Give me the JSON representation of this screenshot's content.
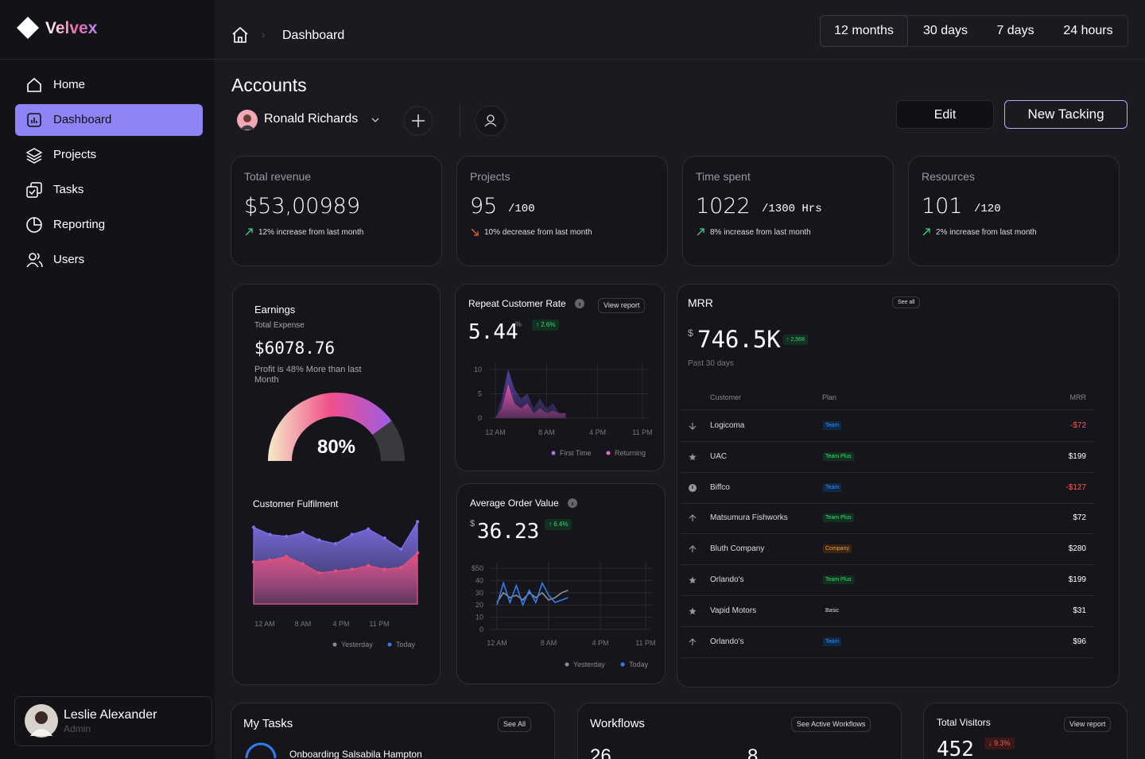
{
  "sidebar": {
    "brand": "Velvex",
    "nav": [
      "Home",
      "Dashboard",
      "Projects",
      "Tasks",
      "Reporting",
      "Users"
    ],
    "active_nav": 1,
    "user": {
      "name": "Leslie Alexander",
      "role": "Admin"
    }
  },
  "header": {
    "breadcrumb": "Dashboard",
    "ranges": [
      "12 months",
      "30 days",
      "7 days",
      "24 hours"
    ],
    "active_range": 0
  },
  "accounts": {
    "title": "Accounts",
    "account": "Ronald Richards",
    "edit": "Edit",
    "new": "New Tacking"
  },
  "stats": [
    {
      "label": "Total revenue",
      "value": "$53,00989",
      "change": "12% increase from last month",
      "trend": "up"
    },
    {
      "label": "Projects",
      "value": "95",
      "suffix": "/100",
      "change": "10% decrease from last month",
      "trend": "down"
    },
    {
      "label": "Time spent",
      "value": "1022",
      "suffix": "/1300 Hrs",
      "change": "8% increase from last month",
      "trend": "up"
    },
    {
      "label": "Resources",
      "value": "101",
      "suffix": "/120",
      "change": "2% increase from last month",
      "trend": "up"
    }
  ],
  "earnings": {
    "title": "Earnings",
    "subtitle": "Total Expense",
    "amount": "$6078.76",
    "note": "Profit is 48% More than last Month",
    "gauge": {
      "value": 80,
      "label": "80%",
      "range": [
        0,
        100
      ]
    }
  },
  "fulfilment": {
    "type": "area",
    "title": "Customer Fulfilment",
    "x_labels": [
      "12 AM",
      "8 AM",
      "4 PM",
      "11 PM"
    ],
    "ylim": [
      0,
      100
    ],
    "markers": true,
    "series": [
      {
        "name": "Yesterday",
        "color": "#7d70e6",
        "legend_color": "#8a8a94",
        "values": [
          84,
          76,
          74,
          78,
          70,
          66,
          76,
          82,
          72,
          60,
          90
        ]
      },
      {
        "name": "Today",
        "color": "#e2507e",
        "legend_color": "#2f80ed",
        "values": [
          46,
          48,
          52,
          44,
          34,
          36,
          38,
          42,
          38,
          40,
          56
        ]
      }
    ]
  },
  "repeat_rate": {
    "type": "area",
    "title": "Repeat Customer Rate",
    "action": "View report",
    "value": "5.44",
    "unit": "%",
    "badge": "↑ 2.6%",
    "x": [
      0,
      1,
      2,
      3,
      4,
      5,
      6,
      7,
      8,
      9,
      10,
      11
    ],
    "xlim": [
      0,
      24
    ],
    "xticks": [
      {
        "value": 0,
        "label": "12 AM"
      },
      {
        "value": 8,
        "label": "8 AM"
      },
      {
        "value": 16,
        "label": "4 PM"
      },
      {
        "value": 23,
        "label": "11 PM"
      }
    ],
    "ylim": [
      0,
      10
    ],
    "yticks": [
      0,
      5,
      10
    ],
    "series": [
      {
        "name": "First Time",
        "color": "#5a44a8",
        "legend_color": "#b070f0",
        "values": [
          0,
          4,
          10,
          6,
          4,
          5,
          2,
          4,
          2,
          3,
          1,
          1
        ]
      },
      {
        "name": "Returning",
        "color": "#e2509e",
        "legend_color": "#e866d8",
        "values": [
          0,
          2,
          7,
          3,
          2,
          3,
          1,
          2,
          1,
          1.5,
          1,
          1
        ]
      }
    ]
  },
  "avg_order": {
    "type": "line",
    "title": "Average Order Value",
    "currency": "$",
    "value": "36.23",
    "badge": "↑ 6.4%",
    "x": [
      0,
      1,
      2,
      3,
      4,
      5,
      6,
      7,
      8,
      9,
      10,
      11
    ],
    "xlim": [
      0,
      24
    ],
    "xticks": [
      {
        "value": 0,
        "label": "12 AM"
      },
      {
        "value": 8,
        "label": "8 AM"
      },
      {
        "value": 16,
        "label": "4 PM"
      },
      {
        "value": 23,
        "label": "11 PM"
      }
    ],
    "ylim": [
      0,
      50
    ],
    "yticks": [
      {
        "value": 50,
        "label": "$50"
      },
      40,
      30,
      20,
      10,
      0
    ],
    "series": [
      {
        "name": "Yesterday",
        "color": "#8e8e99",
        "legend_color": "#8a8a94",
        "values": [
          22,
          30,
          26,
          28,
          24,
          30,
          26,
          30,
          24,
          26,
          30,
          32
        ]
      },
      {
        "name": "Today",
        "color": "#2f7ff0",
        "legend_color": "#2f80ed",
        "values": [
          20,
          38,
          22,
          36,
          20,
          32,
          22,
          38,
          28,
          22,
          24,
          26
        ]
      }
    ]
  },
  "mrr": {
    "title": "MRR",
    "action": "See all",
    "currency": "$",
    "value": "746.5K",
    "badge": "↑ 2,568",
    "period": "Past 30 days",
    "columns": [
      "Customer",
      "Plan",
      "MRR"
    ],
    "rows": [
      {
        "icon": "down",
        "customer": "Logicoma",
        "plan": "Team",
        "mrr": "-$72"
      },
      {
        "icon": "star",
        "customer": "UAC",
        "plan": "Team Plus",
        "mrr": "$199"
      },
      {
        "icon": "info",
        "customer": "Biffco",
        "plan": "Team",
        "mrr": "-$127"
      },
      {
        "icon": "up",
        "customer": "Matsumura Fishworks",
        "plan": "Team Plus",
        "mrr": "$72"
      },
      {
        "icon": "up",
        "customer": "Bluth Company",
        "plan": "Company",
        "mrr": "$280"
      },
      {
        "icon": "star",
        "customer": "Orlando's",
        "plan": "Team Plus",
        "mrr": "$199"
      },
      {
        "icon": "star",
        "customer": "Vapid Motors",
        "plan": "Basic",
        "mrr": "$31"
      },
      {
        "icon": "up",
        "customer": "Orlando's",
        "plan": "Team",
        "mrr": "$96"
      }
    ]
  },
  "tasks": {
    "title": "My Tasks",
    "action": "See All",
    "items": [
      "Onboarding Salsabila Hampton"
    ]
  },
  "workflows": {
    "title": "Workflows",
    "action": "See Active Workflows",
    "counts": [
      "26",
      "8"
    ]
  },
  "visitors": {
    "title": "Total Visitors",
    "action": "View report",
    "value": "452",
    "badge": "↓ 9.3%"
  }
}
